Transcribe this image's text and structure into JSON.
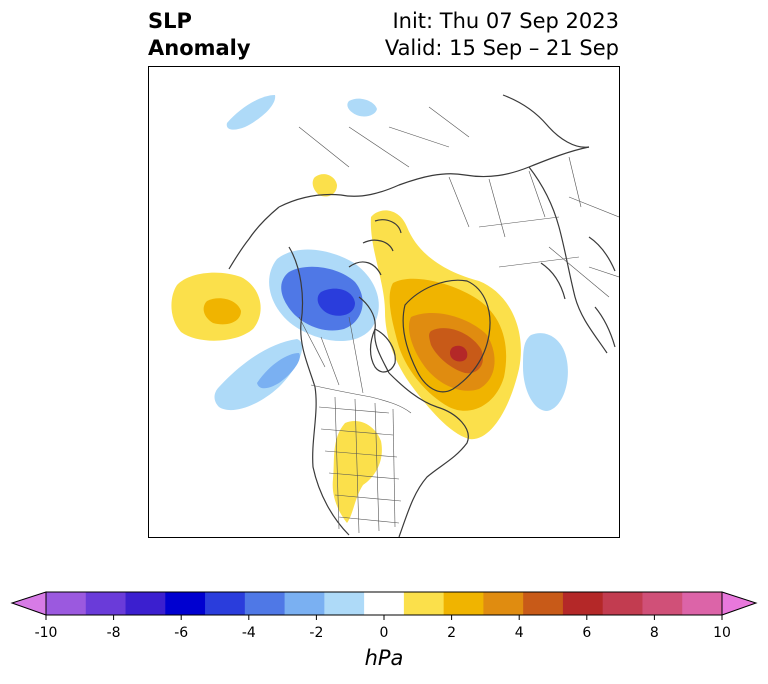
{
  "title": {
    "left_line1": "SLP",
    "left_line2": "Anomaly",
    "right_line1": "Init: Thu 07 Sep 2023",
    "right_line2": "Valid: 15 Sep – 21 Sep"
  },
  "colorbar": {
    "units": "hPa",
    "ticks": [
      "-10",
      "-8",
      "-6",
      "-4",
      "-2",
      "0",
      "2",
      "4",
      "6",
      "8",
      "10"
    ],
    "colors": [
      "#d77be6",
      "#9b59df",
      "#6a3bd9",
      "#3b1fcf",
      "#0000d0",
      "#2a3ddc",
      "#4f78e6",
      "#7ab0f2",
      "#aedaf8",
      "#ffffff",
      "#fbe04b",
      "#f0b400",
      "#e08c10",
      "#c85a18",
      "#b42828",
      "#c23c50",
      "#d05078",
      "#dc64a8",
      "#e878dc"
    ]
  },
  "map": {
    "projection": "north polar stereographic",
    "features": [
      "coastlines",
      "country borders",
      "state and province borders"
    ],
    "anomalies": [
      {
        "region": "Greenland",
        "sign": "positive",
        "peak_hpa": 6
      },
      {
        "region": "Northwest Canada / Alaska",
        "sign": "negative",
        "peak_hpa": -5
      },
      {
        "region": "North Pacific",
        "sign": "positive",
        "peak_hpa": 3
      },
      {
        "region": "Northeast Pacific",
        "sign": "negative",
        "peak_hpa": -2
      },
      {
        "region": "Central North Atlantic",
        "sign": "negative",
        "peak_hpa": -1
      },
      {
        "region": "Central United States",
        "sign": "positive",
        "peak_hpa": 1
      },
      {
        "region": "Siberia",
        "sign": "positive",
        "peak_hpa": 1
      },
      {
        "region": "Arctic / Chukchi",
        "sign": "negative",
        "peak_hpa": -1
      }
    ]
  }
}
